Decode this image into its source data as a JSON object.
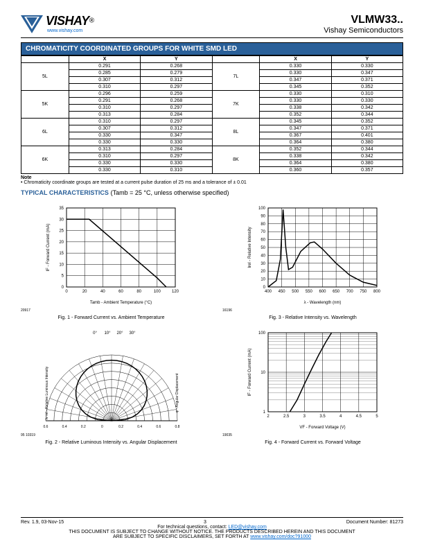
{
  "header": {
    "brand": "VISHAY",
    "url": "www.vishay.com",
    "part": "VLMW33..",
    "subtitle": "Vishay Semiconductors"
  },
  "table_title": "CHROMATICITY COORDINATED GROUPS FOR WHITE SMD LED",
  "cols": [
    "X",
    "Y",
    "X",
    "Y"
  ],
  "groups_left": [
    {
      "name": "5L",
      "rows": [
        [
          "0.291",
          "0.268"
        ],
        [
          "0.285",
          "0.279"
        ],
        [
          "0.307",
          "0.312"
        ],
        [
          "0.310",
          "0.297"
        ]
      ]
    },
    {
      "name": "5K",
      "rows": [
        [
          "0.296",
          "0.259"
        ],
        [
          "0.291",
          "0.268"
        ],
        [
          "0.310",
          "0.297"
        ],
        [
          "0.313",
          "0.284"
        ]
      ]
    },
    {
      "name": "6L",
      "rows": [
        [
          "0.310",
          "0.297"
        ],
        [
          "0.307",
          "0.312"
        ],
        [
          "0.330",
          "0.347"
        ],
        [
          "0.330",
          "0.330"
        ]
      ]
    },
    {
      "name": "6K",
      "rows": [
        [
          "0.313",
          "0.284"
        ],
        [
          "0.310",
          "0.297"
        ],
        [
          "0.330",
          "0.330"
        ],
        [
          "0.330",
          "0.310"
        ]
      ]
    }
  ],
  "groups_right": [
    {
      "name": "7L",
      "rows": [
        [
          "0.330",
          "0.330"
        ],
        [
          "0.330",
          "0.347"
        ],
        [
          "0.347",
          "0.371"
        ],
        [
          "0.345",
          "0.352"
        ]
      ]
    },
    {
      "name": "7K",
      "rows": [
        [
          "0.330",
          "0.310"
        ],
        [
          "0.330",
          "0.330"
        ],
        [
          "0.338",
          "0.342"
        ],
        [
          "0.352",
          "0.344"
        ]
      ]
    },
    {
      "name": "8L",
      "rows": [
        [
          "0.345",
          "0.352"
        ],
        [
          "0.347",
          "0.371"
        ],
        [
          "0.367",
          "0.401"
        ],
        [
          "0.364",
          "0.380"
        ]
      ]
    },
    {
      "name": "8K",
      "rows": [
        [
          "0.352",
          "0.344"
        ],
        [
          "0.338",
          "0.342"
        ],
        [
          "0.364",
          "0.380"
        ],
        [
          "0.360",
          "0.357"
        ]
      ]
    }
  ],
  "note_label": "Note",
  "note_text": "Chromaticity coordinate groups are tested at a current pulse duration of 25 ms and a tolerance of ± 0.01",
  "typ_title": "TYPICAL CHARACTERISTICS",
  "typ_cond": "(Tamb = 25 °C, unless otherwise specified)",
  "fig1": {
    "caption": "Fig. 1 - Forward Current vs. Ambient Temperature",
    "num": "20917",
    "xlabel": "Tamb - Ambient Temperature (°C)",
    "ylabel": "IF - Forward Current (mA)",
    "xlim": [
      0,
      120
    ],
    "xticks": [
      0,
      20,
      40,
      60,
      80,
      100,
      120
    ],
    "ylim": [
      0,
      35
    ],
    "yticks": [
      0,
      5,
      10,
      15,
      20,
      25,
      30,
      35
    ],
    "line": [
      [
        0,
        30
      ],
      [
        25,
        30
      ],
      [
        100,
        4
      ],
      [
        110,
        0
      ]
    ],
    "line_width": 1.5,
    "line_color": "#000000",
    "bg": "#ffffff",
    "grid": "#000000"
  },
  "fig3": {
    "caption": "Fig. 3 - Relative Intensity vs. Wavelength",
    "num": "16196",
    "xlabel": "λ - Wavelength (nm)",
    "ylabel": "Irel - Relative Intensity",
    "xlim": [
      400,
      800
    ],
    "xticks": [
      400,
      450,
      500,
      550,
      600,
      650,
      700,
      750,
      800
    ],
    "ylim": [
      0,
      100
    ],
    "yticks": [
      0,
      10,
      20,
      30,
      40,
      50,
      60,
      70,
      80,
      90,
      100
    ],
    "line": [
      [
        400,
        0
      ],
      [
        430,
        8
      ],
      [
        445,
        35
      ],
      [
        455,
        98
      ],
      [
        465,
        50
      ],
      [
        475,
        22
      ],
      [
        490,
        25
      ],
      [
        520,
        45
      ],
      [
        555,
        56
      ],
      [
        570,
        57
      ],
      [
        600,
        48
      ],
      [
        650,
        30
      ],
      [
        700,
        15
      ],
      [
        750,
        6
      ],
      [
        800,
        2
      ]
    ],
    "line_width": 1.5,
    "line_color": "#000000",
    "bg": "#ffffff",
    "grid": "#000000"
  },
  "fig2": {
    "caption": "Fig. 2 - Relative Luminous Intensity vs. Angular Displacement",
    "num": "95 10319",
    "xlabel_left": "Iv rel - Relative Luminous Intensity",
    "xlabel_right": "φ - Angular Displacement",
    "angles": [
      "0°",
      "10°",
      "20°",
      "30°"
    ],
    "radii": [
      "0.6",
      "0.4",
      "0.2",
      "0",
      "0.2",
      "0.4",
      "0.6",
      "0.8"
    ]
  },
  "fig4": {
    "caption": "Fig. 4 - Forward Current vs. Forward Voltage",
    "num": "19035",
    "xlabel": "VF - Forward Voltage (V)",
    "ylabel": "IF - Forward Current (mA)",
    "xlim": [
      2,
      5
    ],
    "xticks": [
      2,
      2.5,
      3,
      3.5,
      4,
      4.5,
      5
    ],
    "ylim": [
      1,
      100
    ],
    "ytype": "log",
    "yticks": [
      1,
      10,
      100
    ],
    "line": [
      [
        2.6,
        1
      ],
      [
        2.8,
        2
      ],
      [
        3.0,
        5
      ],
      [
        3.2,
        12
      ],
      [
        3.4,
        28
      ],
      [
        3.6,
        60
      ],
      [
        3.75,
        100
      ]
    ],
    "line_width": 1.5,
    "line_color": "#000000",
    "bg": "#ffffff",
    "grid": "#000000"
  },
  "footer": {
    "rev": "Rev. 1.9, 03-Nov-15",
    "page": "3",
    "doc": "Document Number: 81273",
    "contact": "For technical questions, contact: ",
    "email": "LED@vishay.com",
    "disclaimer1": "THIS DOCUMENT IS SUBJECT TO CHANGE WITHOUT NOTICE. THE PRODUCTS DESCRIBED HEREIN AND THIS DOCUMENT",
    "disclaimer2": "ARE SUBJECT TO SPECIFIC DISCLAIMERS, SET FORTH AT ",
    "disclaimer_url": "www.vishay.com/doc?91000"
  }
}
